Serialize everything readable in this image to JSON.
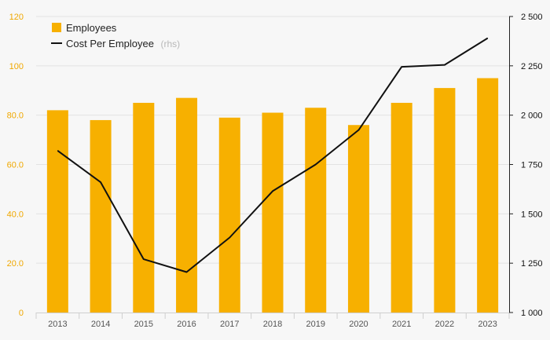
{
  "chart_data": {
    "type": "bar",
    "categories": [
      "2013",
      "2014",
      "2015",
      "2016",
      "2017",
      "2018",
      "2019",
      "2020",
      "2021",
      "2022",
      "2023"
    ],
    "series": [
      {
        "name": "Employees",
        "type": "bar",
        "axis": "left",
        "color": "#f7b000",
        "values": [
          82,
          78,
          85,
          87,
          79,
          81,
          83,
          76,
          85,
          91,
          95
        ]
      },
      {
        "name": "Cost Per Employee",
        "type": "line",
        "axis": "right",
        "color": "#111111",
        "values": [
          1820,
          1660,
          1270,
          1205,
          1380,
          1615,
          1750,
          1925,
          2245,
          2255,
          2390
        ]
      }
    ],
    "left_axis": {
      "ylim": [
        0,
        120
      ],
      "ticks": [
        0,
        20,
        40,
        60,
        80,
        100,
        120
      ],
      "tick_labels": [
        "0",
        "20.0",
        "40.0",
        "60.0",
        "80.0",
        "100",
        "120"
      ],
      "color": "#f0a800"
    },
    "right_axis": {
      "ylim": [
        1000,
        2500
      ],
      "ticks": [
        1000,
        1250,
        1500,
        1750,
        2000,
        2250,
        2500
      ],
      "tick_labels": [
        "1 000",
        "1 250",
        "1 500",
        "1 750",
        "2 000",
        "2 250",
        "2 500"
      ],
      "color": "#111111"
    },
    "legend": {
      "position": "top-left",
      "items": [
        {
          "label": "Employees",
          "marker": "square",
          "color": "#f7b000"
        },
        {
          "label": "Cost Per Employee",
          "suffix": "(rhs)",
          "marker": "line",
          "color": "#111111"
        }
      ]
    },
    "grid": true
  }
}
